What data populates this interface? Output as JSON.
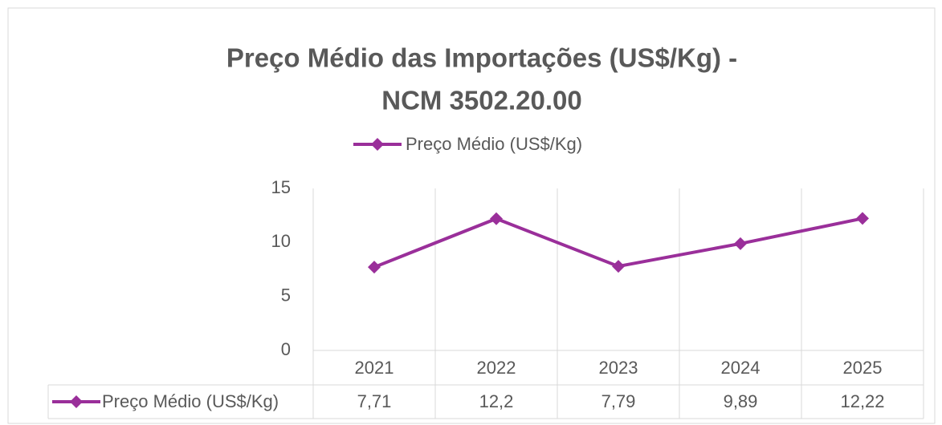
{
  "chart_data": {
    "type": "line",
    "title": [
      "Preço Médio das Importações (US$/Kg) -",
      "NCM 3502.20.00"
    ],
    "categories": [
      "2021",
      "2022",
      "2023",
      "2024",
      "2025"
    ],
    "series": [
      {
        "name": "Preço Médio (US$/Kg)",
        "color": "#9a2f9a",
        "values": [
          7.71,
          12.2,
          7.79,
          9.89,
          12.22
        ],
        "value_labels": [
          "7,71",
          "12,2",
          "7,79",
          "9,89",
          "12,22"
        ]
      }
    ],
    "ylim": [
      0,
      15
    ],
    "yticks": [
      0,
      5,
      10,
      15
    ],
    "grid": true,
    "legend": "top",
    "data_table": true
  }
}
